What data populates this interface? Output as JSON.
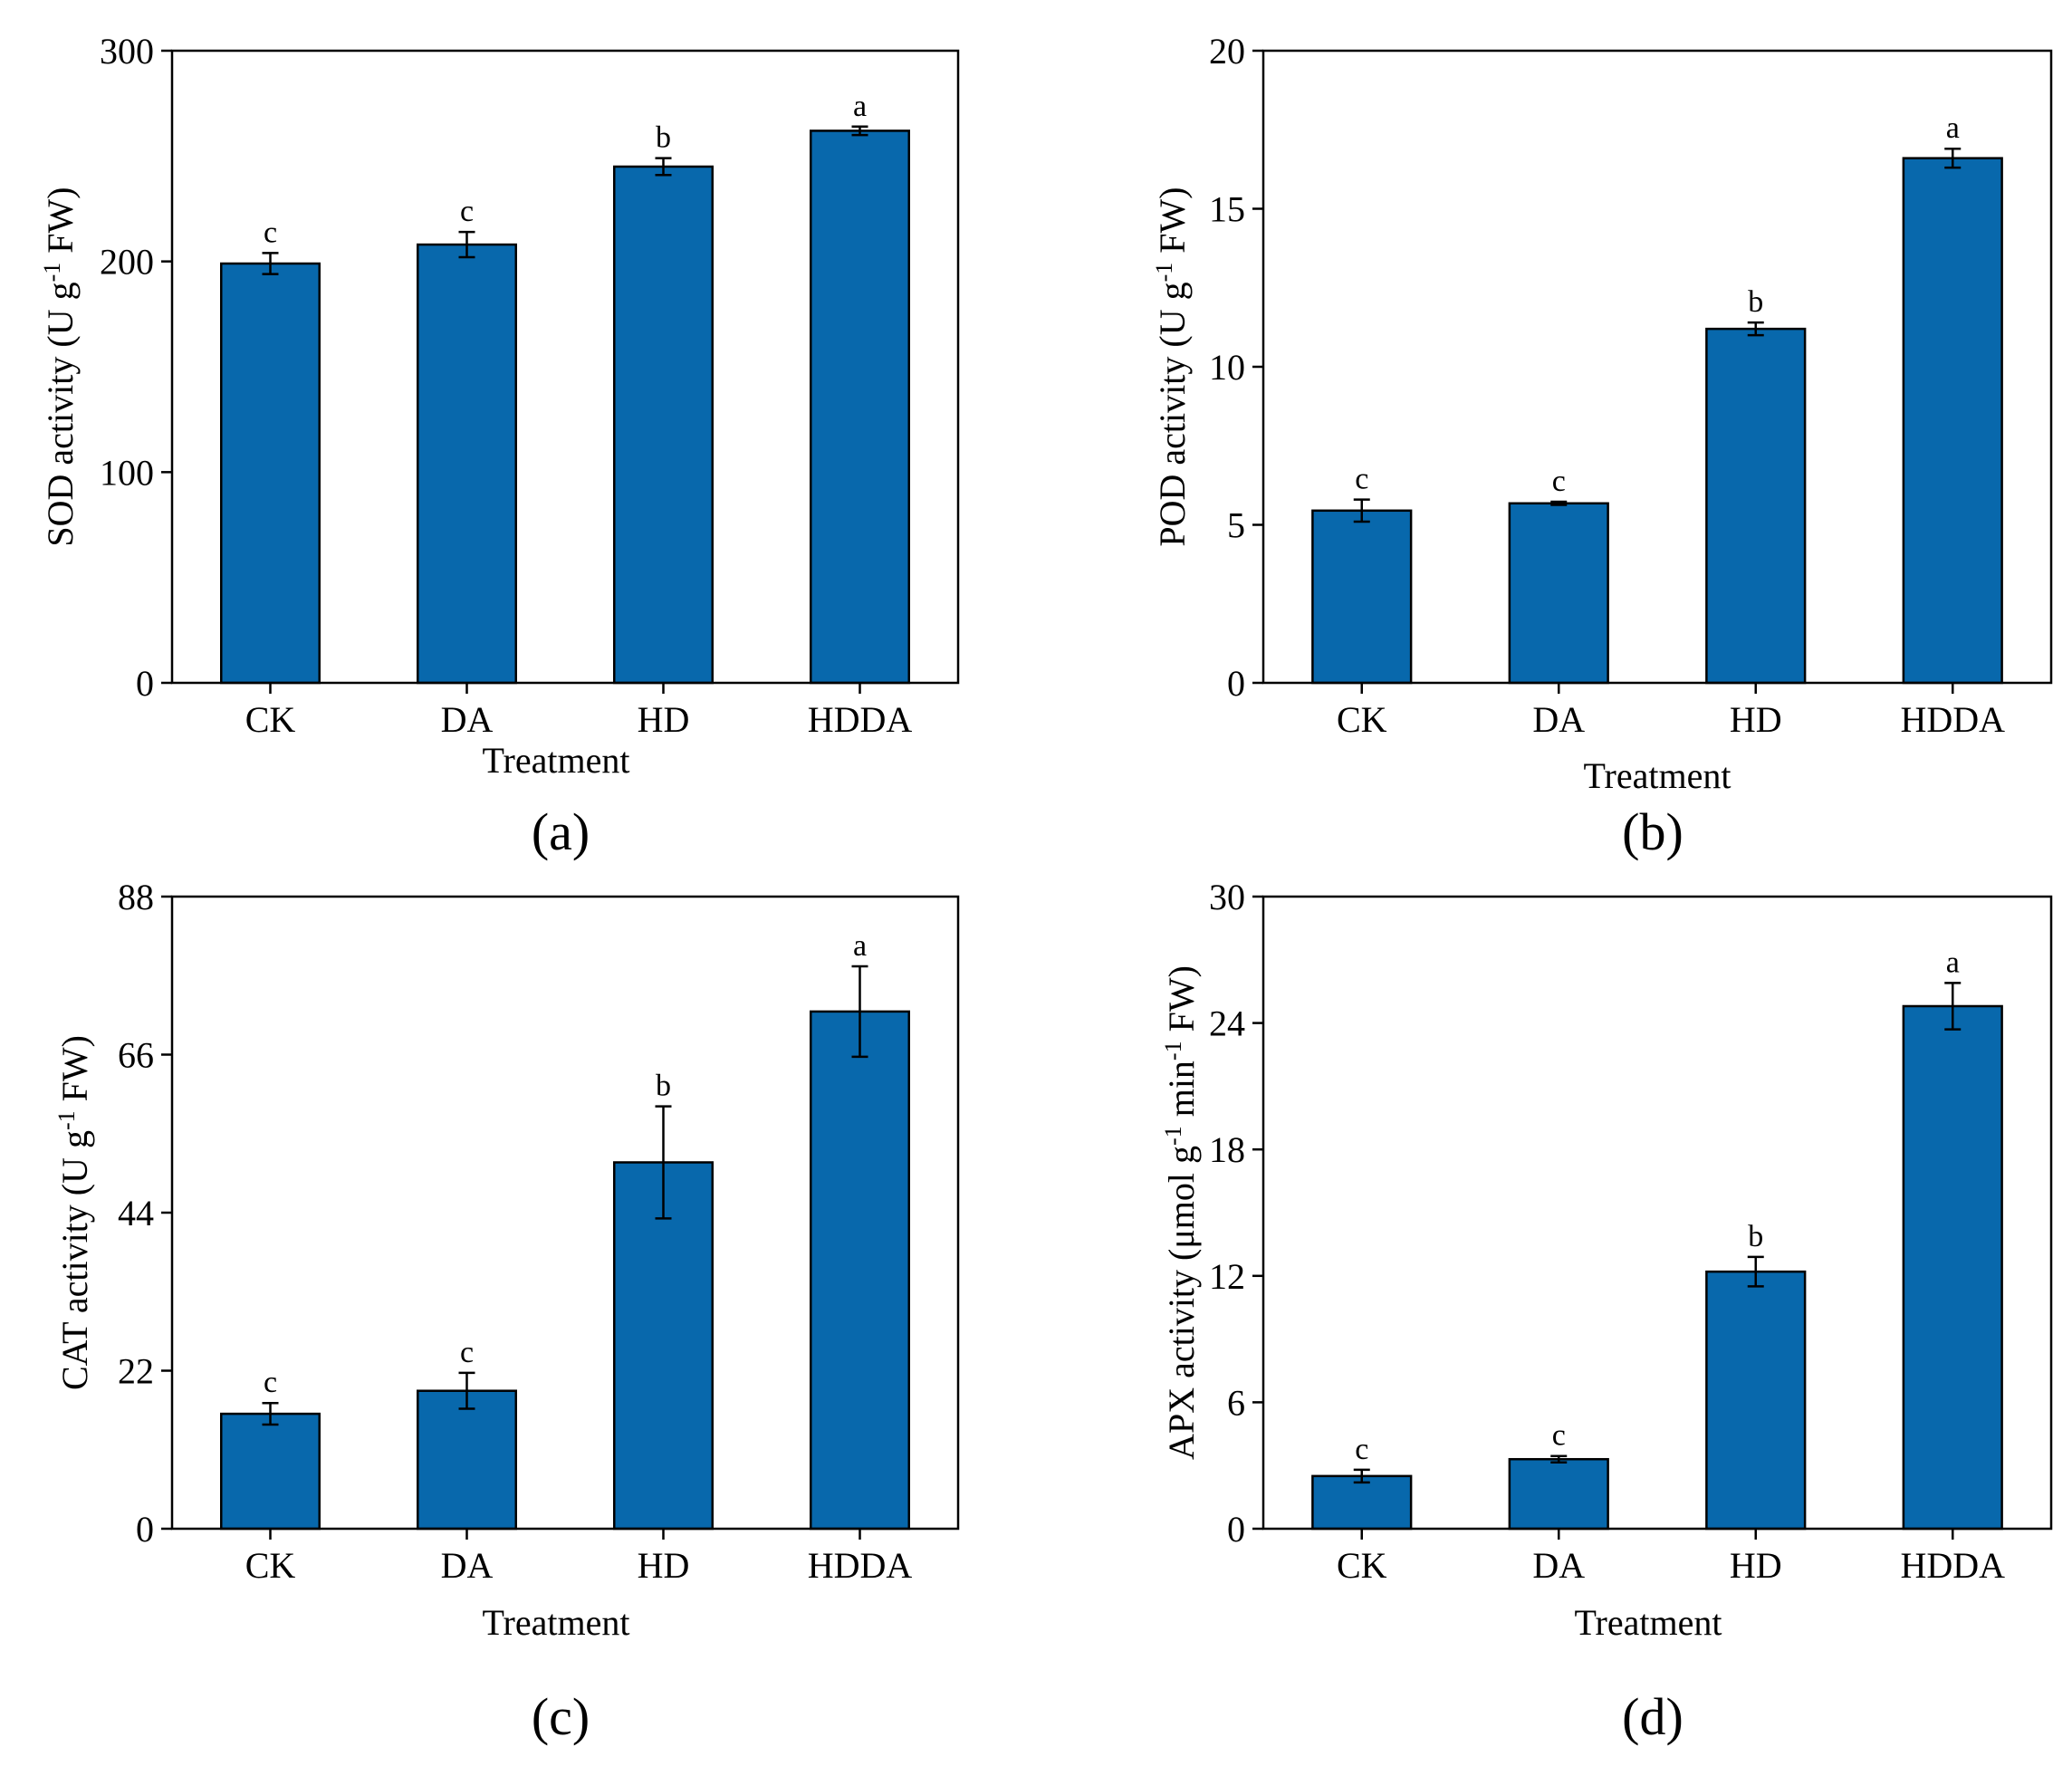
{
  "colors": {
    "bar": "#0868ac"
  },
  "chart_data": [
    {
      "type": "bar",
      "panel_label": "(a)",
      "categories": [
        "CK",
        "DA",
        "HD",
        "HDDA"
      ],
      "values": [
        199,
        208,
        245,
        262
      ],
      "errors": [
        5,
        6,
        4,
        2
      ],
      "sig_letters": [
        "c",
        "c",
        "b",
        "a"
      ],
      "xlabel": "Treatment",
      "ylabel": "SOD activity (U g",
      "ylabel_sup": "-1",
      "ylabel_end": " FW)",
      "ylim": [
        0,
        300
      ],
      "yticks": [
        0,
        100,
        200,
        300
      ],
      "grid": false
    },
    {
      "type": "bar",
      "panel_label": "(b)",
      "categories": [
        "CK",
        "DA",
        "HD",
        "HDDA"
      ],
      "values": [
        5.45,
        5.68,
        11.2,
        16.6
      ],
      "errors": [
        0.35,
        0.05,
        0.2,
        0.3
      ],
      "sig_letters": [
        "c",
        "c",
        "b",
        "a"
      ],
      "xlabel": "Treatment",
      "ylabel": "POD activity (U g",
      "ylabel_sup": "-1",
      "ylabel_end": " FW)",
      "ylim": [
        0,
        20
      ],
      "yticks": [
        0,
        5,
        10,
        15,
        20
      ],
      "grid": false
    },
    {
      "type": "bar",
      "panel_label": "(c)",
      "categories": [
        "CK",
        "DA",
        "HD",
        "HDDA"
      ],
      "values": [
        16,
        19.2,
        51,
        72
      ],
      "errors": [
        1.5,
        2.5,
        7.8,
        6.3
      ],
      "sig_letters": [
        "c",
        "c",
        "b",
        "a"
      ],
      "xlabel": "Treatment",
      "ylabel": "CAT activity (U g",
      "ylabel_sup": "-1",
      "ylabel_end": " FW)",
      "ylim": [
        0,
        88
      ],
      "yticks": [
        0,
        22,
        44,
        66,
        88
      ],
      "grid": false
    },
    {
      "type": "bar",
      "panel_label": "(d)",
      "categories": [
        "CK",
        "DA",
        "HD",
        "HDDA"
      ],
      "values": [
        2.5,
        3.3,
        12.2,
        24.8
      ],
      "errors": [
        0.3,
        0.15,
        0.7,
        1.1
      ],
      "sig_letters": [
        "c",
        "c",
        "b",
        "a"
      ],
      "xlabel": "Treatment",
      "ylabel": "APX activity (μmol g",
      "ylabel_sup": "-1",
      "ylabel_mid": " min",
      "ylabel_sup2": "-1",
      "ylabel_end": " FW)",
      "ylim": [
        0,
        30
      ],
      "yticks": [
        0,
        6,
        12,
        18,
        24,
        30
      ],
      "grid": false
    }
  ]
}
